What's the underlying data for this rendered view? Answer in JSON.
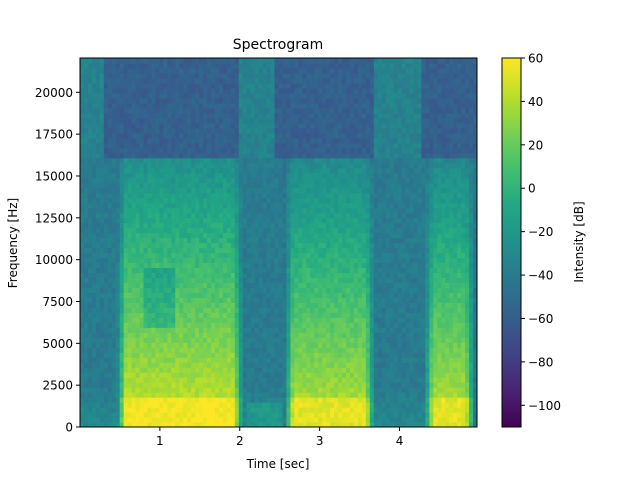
{
  "chart_data": {
    "type": "heatmap",
    "title": "Spectrogram",
    "xlabel": "Time [sec]",
    "ylabel": "Frequency [Hz]",
    "xlim": [
      0,
      4.97
    ],
    "ylim": [
      0,
      22050
    ],
    "x_ticks": [
      {
        "value": 1,
        "label": "1"
      },
      {
        "value": 2,
        "label": "2"
      },
      {
        "value": 3,
        "label": "3"
      },
      {
        "value": 4,
        "label": "4"
      }
    ],
    "y_ticks": [
      {
        "value": 0,
        "label": "0"
      },
      {
        "value": 2500,
        "label": "2500"
      },
      {
        "value": 5000,
        "label": "5000"
      },
      {
        "value": 7500,
        "label": "7500"
      },
      {
        "value": 10000,
        "label": "10000"
      },
      {
        "value": 12500,
        "label": "12500"
      },
      {
        "value": 15000,
        "label": "15000"
      },
      {
        "value": 17500,
        "label": "17500"
      },
      {
        "value": 20000,
        "label": "20000"
      }
    ],
    "colormap": "viridis",
    "colorbar": {
      "label": "Intensity [dB]",
      "range": [
        -110,
        60
      ],
      "ticks": [
        {
          "value": 60,
          "label": "60"
        },
        {
          "value": 40,
          "label": "40"
        },
        {
          "value": 20,
          "label": "20"
        },
        {
          "value": 0,
          "label": "0"
        },
        {
          "value": -20,
          "label": "−20"
        },
        {
          "value": -40,
          "label": "−40"
        },
        {
          "value": -60,
          "label": "−60"
        },
        {
          "value": -80,
          "label": "−80"
        },
        {
          "value": -100,
          "label": "−100"
        }
      ]
    },
    "grid": false,
    "speech_segments": [
      {
        "start": 0.45,
        "end": 2.05,
        "low_freq_level_db": 50
      },
      {
        "start": 2.55,
        "end": 3.7,
        "low_freq_level_db": 45
      },
      {
        "start": 4.3,
        "end": 4.95,
        "low_freq_level_db": 45
      }
    ],
    "high_band_segments": [
      {
        "start": 0.0,
        "end": 0.3,
        "level_db": -35
      },
      {
        "start": 2.0,
        "end": 2.45,
        "level_db": -35
      },
      {
        "start": 3.7,
        "end": 4.25,
        "level_db": -35
      }
    ]
  }
}
